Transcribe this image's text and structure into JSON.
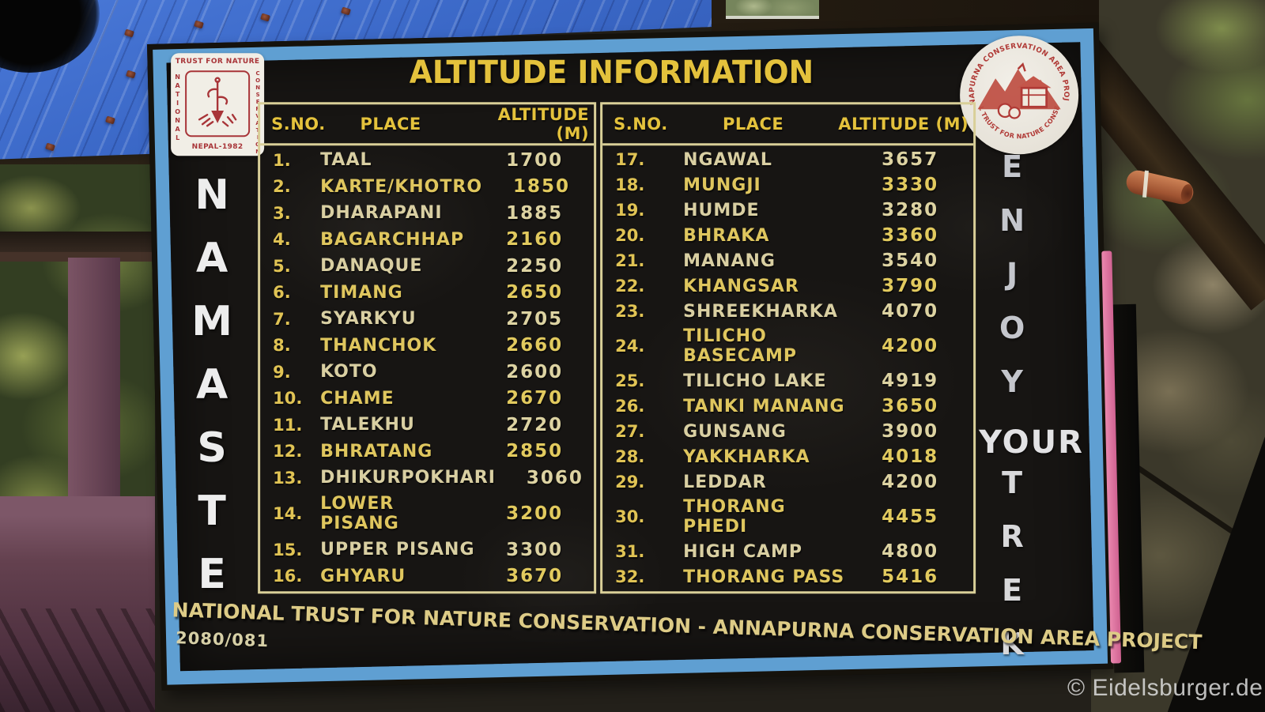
{
  "sign": {
    "title": "ALTITUDE INFORMATION",
    "namaste": "NAMASTE",
    "enjoy": "ENJOY",
    "your": "YOUR",
    "trek": "TREK",
    "footer": "NATIONAL TRUST FOR NATURE CONSERVATION - ANNAPURNA CONSERVATION AREA PROJECT",
    "code": "2080/081",
    "table": {
      "headers": {
        "sno": "S.NO.",
        "place": "PLACE",
        "altitude": "ALTITUDE (M)"
      },
      "left_rows": [
        {
          "sno": "1.",
          "place": "TAAL",
          "altitude": "1700"
        },
        {
          "sno": "2.",
          "place": "KARTE/KHOTRO",
          "altitude": "1850"
        },
        {
          "sno": "3.",
          "place": "DHARAPANI",
          "altitude": "1885"
        },
        {
          "sno": "4.",
          "place": "BAGARCHHAP",
          "altitude": "2160"
        },
        {
          "sno": "5.",
          "place": "DANAQUE",
          "altitude": "2250"
        },
        {
          "sno": "6.",
          "place": "TIMANG",
          "altitude": "2650"
        },
        {
          "sno": "7.",
          "place": "SYARKYU",
          "altitude": "2705"
        },
        {
          "sno": "8.",
          "place": "THANCHOK",
          "altitude": "2660"
        },
        {
          "sno": "9.",
          "place": "KOTO",
          "altitude": "2600"
        },
        {
          "sno": "10.",
          "place": "CHAME",
          "altitude": "2670"
        },
        {
          "sno": "11.",
          "place": "TALEKHU",
          "altitude": "2720"
        },
        {
          "sno": "12.",
          "place": "BHRATANG",
          "altitude": "2850"
        },
        {
          "sno": "13.",
          "place": "DHIKURPOKHARI",
          "altitude": "3060"
        },
        {
          "sno": "14.",
          "place": "LOWER PISANG",
          "altitude": "3200"
        },
        {
          "sno": "15.",
          "place": "UPPER PISANG",
          "altitude": "3300"
        },
        {
          "sno": "16.",
          "place": "GHYARU",
          "altitude": "3670"
        }
      ],
      "right_rows": [
        {
          "sno": "17.",
          "place": "NGAWAL",
          "altitude": "3657"
        },
        {
          "sno": "18.",
          "place": "MUNGJI",
          "altitude": "3330"
        },
        {
          "sno": "19.",
          "place": "HUMDE",
          "altitude": "3280"
        },
        {
          "sno": "20.",
          "place": "BHRAKA",
          "altitude": "3360"
        },
        {
          "sno": "21.",
          "place": "MANANG",
          "altitude": "3540"
        },
        {
          "sno": "22.",
          "place": "KHANGSAR",
          "altitude": "3790"
        },
        {
          "sno": "23.",
          "place": "SHREEKHARKA",
          "altitude": "4070"
        },
        {
          "sno": "24.",
          "place": "TILICHO BASECAMP",
          "altitude": "4200"
        },
        {
          "sno": "25.",
          "place": "TILICHO LAKE",
          "altitude": "4919"
        },
        {
          "sno": "26.",
          "place": "TANKI MANANG",
          "altitude": "3650"
        },
        {
          "sno": "27.",
          "place": "GUNSANG",
          "altitude": "3900"
        },
        {
          "sno": "28.",
          "place": "YAKKHARKA",
          "altitude": "4018"
        },
        {
          "sno": "29.",
          "place": "LEDDAR",
          "altitude": "4200"
        },
        {
          "sno": "30.",
          "place": "THORANG PHEDI",
          "altitude": "4455"
        },
        {
          "sno": "31.",
          "place": "HIGH CAMP",
          "altitude": "4800"
        },
        {
          "sno": "32.",
          "place": "THORANG PASS",
          "altitude": "5416"
        }
      ]
    },
    "ntnc_logo": {
      "top": "TRUST FOR NATURE",
      "left": "NATIONAL",
      "right": "CONSERVATION",
      "bottom": "NEPAL-1982"
    },
    "acap_logo": {
      "top": "ANNAPURNA CONSERVATION AREA PROJECT",
      "bottom": "NATIONAL TRUST FOR NATURE CONSERVATION"
    }
  },
  "watermark": "© Eidelsburger.de",
  "colors": {
    "board_black": "#171513",
    "frame_blue": "#5f9fd2",
    "text_yellow": "#e4c23c",
    "text_cream": "#d9cfa2",
    "text_white": "#ededed",
    "tarp_blue": "#3a67c6",
    "pink_stripe": "#e0739f",
    "logo_red": "#a83438"
  }
}
